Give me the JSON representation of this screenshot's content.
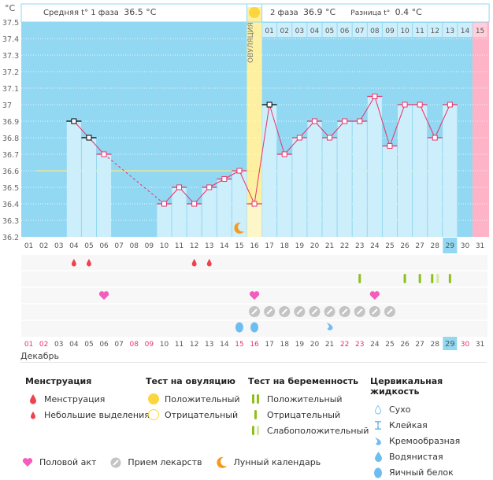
{
  "header": {
    "unit": "°C",
    "phase1_label": "Средняя t° 1 фаза",
    "phase1_value": "36.5 °C",
    "phase2_label": "2 фаза",
    "phase2_value": "36.9 °C",
    "diff_label": "Разница t°",
    "diff_value": "0.4 °C",
    "ovulation_label": "ОВУЛЯЦИЯ"
  },
  "month_label": "Декабрь",
  "colors": {
    "plot_bg": "#92d8f2",
    "bar": "#cdeefb",
    "line": "#e8336a",
    "coverline": "#f5ec8c",
    "ovulation": "#fdf0a0",
    "next_cycle": "#ffb3c6",
    "today": "#92d8f2",
    "red_day": "#e8336a"
  },
  "chart_data": {
    "type": "line",
    "title": "",
    "xlabel": "Декабрь",
    "ylabel": "°C",
    "ylim": [
      36.2,
      37.5
    ],
    "yticks": [
      "37.5",
      "37.4",
      "37.3",
      "37.2",
      "37.1",
      "37",
      "36.9",
      "36.8",
      "36.7",
      "36.6",
      "36.5",
      "36.4",
      "36.3",
      "36.2"
    ],
    "coverline": 36.6,
    "x": [
      "01",
      "02",
      "03",
      "04",
      "05",
      "06",
      "07",
      "08",
      "09",
      "10",
      "11",
      "12",
      "13",
      "14",
      "15",
      "16",
      "17",
      "18",
      "19",
      "20",
      "21",
      "22",
      "23",
      "24",
      "25",
      "26",
      "27",
      "28",
      "29",
      "30",
      "31"
    ],
    "series": [
      {
        "name": "Базальная температура",
        "values": [
          null,
          null,
          null,
          36.9,
          36.8,
          36.7,
          null,
          null,
          null,
          36.4,
          36.5,
          36.4,
          36.5,
          36.55,
          36.6,
          36.4,
          37.0,
          36.7,
          36.8,
          36.9,
          36.8,
          36.9,
          36.9,
          37.05,
          36.75,
          37.0,
          37.0,
          36.8,
          37.0,
          null,
          null
        ],
        "excluded_days": [
          "04",
          "05",
          "17"
        ]
      }
    ],
    "ovulation_day": "16",
    "cycle_day_labels": [
      "01",
      "02",
      "03",
      "04",
      "05",
      "06",
      "07",
      "08",
      "09",
      "10",
      "11",
      "12",
      "13",
      "14"
    ],
    "next_cycle_label": "15",
    "today": "29",
    "red_days": [
      "01",
      "02",
      "08",
      "09",
      "15",
      "16",
      "22",
      "23",
      "30"
    ],
    "markers": {
      "menstruation": [
        "04",
        "05",
        "12",
        "13"
      ],
      "pregnancy_test": [
        {
          "day": "23",
          "result": "negative"
        },
        {
          "day": "26",
          "result": "negative"
        },
        {
          "day": "27",
          "result": "negative"
        },
        {
          "day": "28",
          "result": "weak"
        },
        {
          "day": "29",
          "result": "negative"
        }
      ],
      "intercourse": [
        "06",
        "16",
        "24"
      ],
      "medication": [
        "16",
        "17",
        "18",
        "19",
        "20",
        "21",
        "22",
        "23",
        "24",
        "25"
      ],
      "cervical_fluid": [
        {
          "day": "15",
          "type": "egg_white"
        },
        {
          "day": "16",
          "type": "egg_white"
        },
        {
          "day": "21",
          "type": "creamy"
        }
      ],
      "moon": [
        "15"
      ]
    }
  },
  "legend": {
    "menstruation": {
      "title": "Менструация",
      "items": [
        "Менструация",
        "Небольшие выделения"
      ]
    },
    "ovulation_test": {
      "title": "Тест на овуляцию",
      "items": [
        "Положительный",
        "Отрицательный"
      ]
    },
    "pregnancy_test": {
      "title": "Тест на беременность",
      "items": [
        "Положительный",
        "Отрицательный",
        "Слабоположительный"
      ]
    },
    "cervical_fluid": {
      "title": "Цервикальная жидкость",
      "items": [
        "Сухо",
        "Клейкая",
        "Кремообразная",
        "Водянистая",
        "Яичный белок"
      ]
    },
    "bottom": [
      "Половой акт",
      "Прием лекарств",
      "Лунный календарь"
    ]
  }
}
